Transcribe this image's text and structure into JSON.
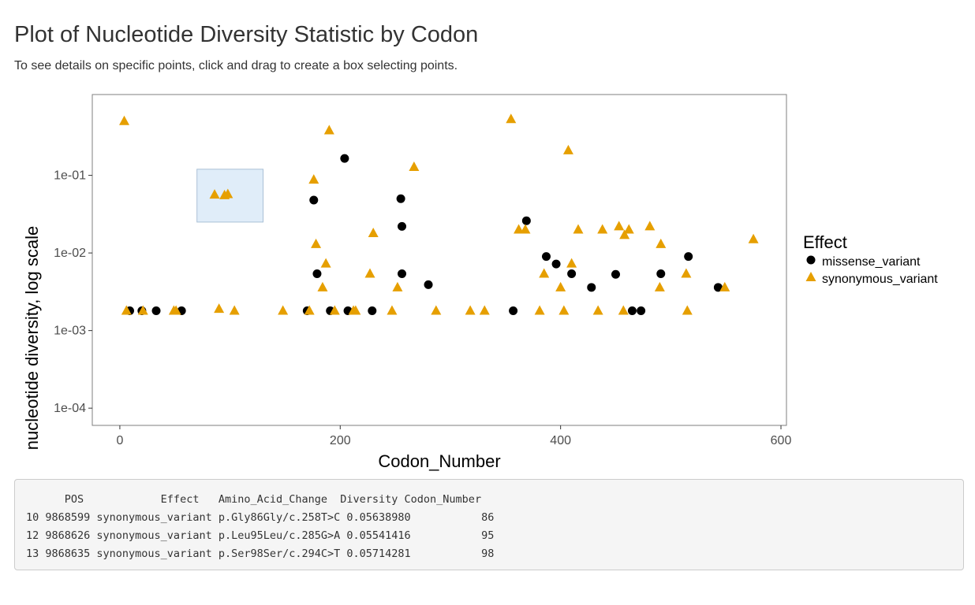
{
  "page": {
    "title": "Plot of Nucleotide Diversity Statistic by Codon",
    "subtitle": "To see details on specific points, click and drag to create a box selecting points."
  },
  "colors": {
    "missense": "#000000",
    "synonymous": "#E69F00",
    "brush_fill": "#dbeaf9",
    "brush_stroke": "#9cb6cf"
  },
  "chart_data": {
    "type": "scatter",
    "title": "",
    "xlabel": "Codon_Number",
    "ylabel": "nucleotide diversity, log scale",
    "xlim": [
      -25,
      605
    ],
    "ylim": [
      6e-05,
      1.1
    ],
    "y_scale": "log10",
    "x_ticks": [
      {
        "value": 0,
        "label": "0"
      },
      {
        "value": 200,
        "label": "200"
      },
      {
        "value": 400,
        "label": "400"
      },
      {
        "value": 600,
        "label": "600"
      }
    ],
    "y_ticks": [
      {
        "value": 0.0001,
        "label": "1e-04"
      },
      {
        "value": 0.001,
        "label": "1e-03"
      },
      {
        "value": 0.01,
        "label": "1e-02"
      },
      {
        "value": 0.1,
        "label": "1e-01"
      }
    ],
    "grid": false,
    "legend": {
      "title": "Effect",
      "position": "right"
    },
    "brush_selection": {
      "x": [
        70,
        130
      ],
      "y": [
        0.025,
        0.12
      ]
    },
    "series": [
      {
        "name": "missense_variant",
        "marker": "circle",
        "points": [
          [
            9,
            0.0018
          ],
          [
            20,
            0.0018
          ],
          [
            33,
            0.0018
          ],
          [
            56,
            0.0018
          ],
          [
            170,
            0.0018
          ],
          [
            176,
            0.048
          ],
          [
            179,
            0.0054
          ],
          [
            191,
            0.0018
          ],
          [
            207,
            0.0018
          ],
          [
            204,
            0.165
          ],
          [
            229,
            0.0018
          ],
          [
            255,
            0.05
          ],
          [
            256,
            0.022
          ],
          [
            256,
            0.0054
          ],
          [
            280,
            0.0039
          ],
          [
            357,
            0.0018
          ],
          [
            369,
            0.026
          ],
          [
            387,
            0.009
          ],
          [
            396,
            0.0072
          ],
          [
            410,
            0.0054
          ],
          [
            428,
            0.0036
          ],
          [
            450,
            0.0053
          ],
          [
            465,
            0.0018
          ],
          [
            473,
            0.0018
          ],
          [
            491,
            0.0054
          ],
          [
            516,
            0.009
          ],
          [
            543,
            0.0036
          ]
        ]
      },
      {
        "name": "synonymous_variant",
        "marker": "triangle",
        "points": [
          [
            4,
            0.5
          ],
          [
            6,
            0.0018
          ],
          [
            21,
            0.0018
          ],
          [
            49,
            0.0018
          ],
          [
            51,
            0.0018
          ],
          [
            86,
            0.05639
          ],
          [
            95,
            0.05541
          ],
          [
            98,
            0.05714
          ],
          [
            90,
            0.0019
          ],
          [
            104,
            0.0018
          ],
          [
            148,
            0.0018
          ],
          [
            172,
            0.0018
          ],
          [
            176,
            0.088
          ],
          [
            178,
            0.013
          ],
          [
            184,
            0.0036
          ],
          [
            187,
            0.0073
          ],
          [
            190,
            0.38
          ],
          [
            195,
            0.0018
          ],
          [
            212,
            0.0018
          ],
          [
            214,
            0.0018
          ],
          [
            227,
            0.0054
          ],
          [
            230,
            0.018
          ],
          [
            247,
            0.0018
          ],
          [
            252,
            0.0036
          ],
          [
            267,
            0.128
          ],
          [
            287,
            0.0018
          ],
          [
            318,
            0.0018
          ],
          [
            331,
            0.0018
          ],
          [
            355,
            0.53
          ],
          [
            362,
            0.02
          ],
          [
            368,
            0.02
          ],
          [
            381,
            0.0018
          ],
          [
            385,
            0.0054
          ],
          [
            400,
            0.0036
          ],
          [
            403,
            0.0018
          ],
          [
            407,
            0.21
          ],
          [
            410,
            0.0073
          ],
          [
            416,
            0.02
          ],
          [
            434,
            0.0018
          ],
          [
            438,
            0.02
          ],
          [
            453,
            0.022
          ],
          [
            457,
            0.0018
          ],
          [
            458,
            0.017
          ],
          [
            462,
            0.02
          ],
          [
            481,
            0.022
          ],
          [
            490,
            0.0036
          ],
          [
            491,
            0.013
          ],
          [
            514,
            0.0054
          ],
          [
            515,
            0.0018
          ],
          [
            549,
            0.0036
          ],
          [
            575,
            0.015
          ]
        ]
      }
    ]
  },
  "output": {
    "header": "      POS            Effect   Amino_Acid_Change  Diversity Codon_Number",
    "rows": [
      "10 9868599 synonymous_variant p.Gly86Gly/c.258T>C 0.05638980           86",
      "12 9868626 synonymous_variant p.Leu95Leu/c.285G>A 0.05541416           95",
      "13 9868635 synonymous_variant p.Ser98Ser/c.294C>T 0.05714281           98"
    ]
  }
}
